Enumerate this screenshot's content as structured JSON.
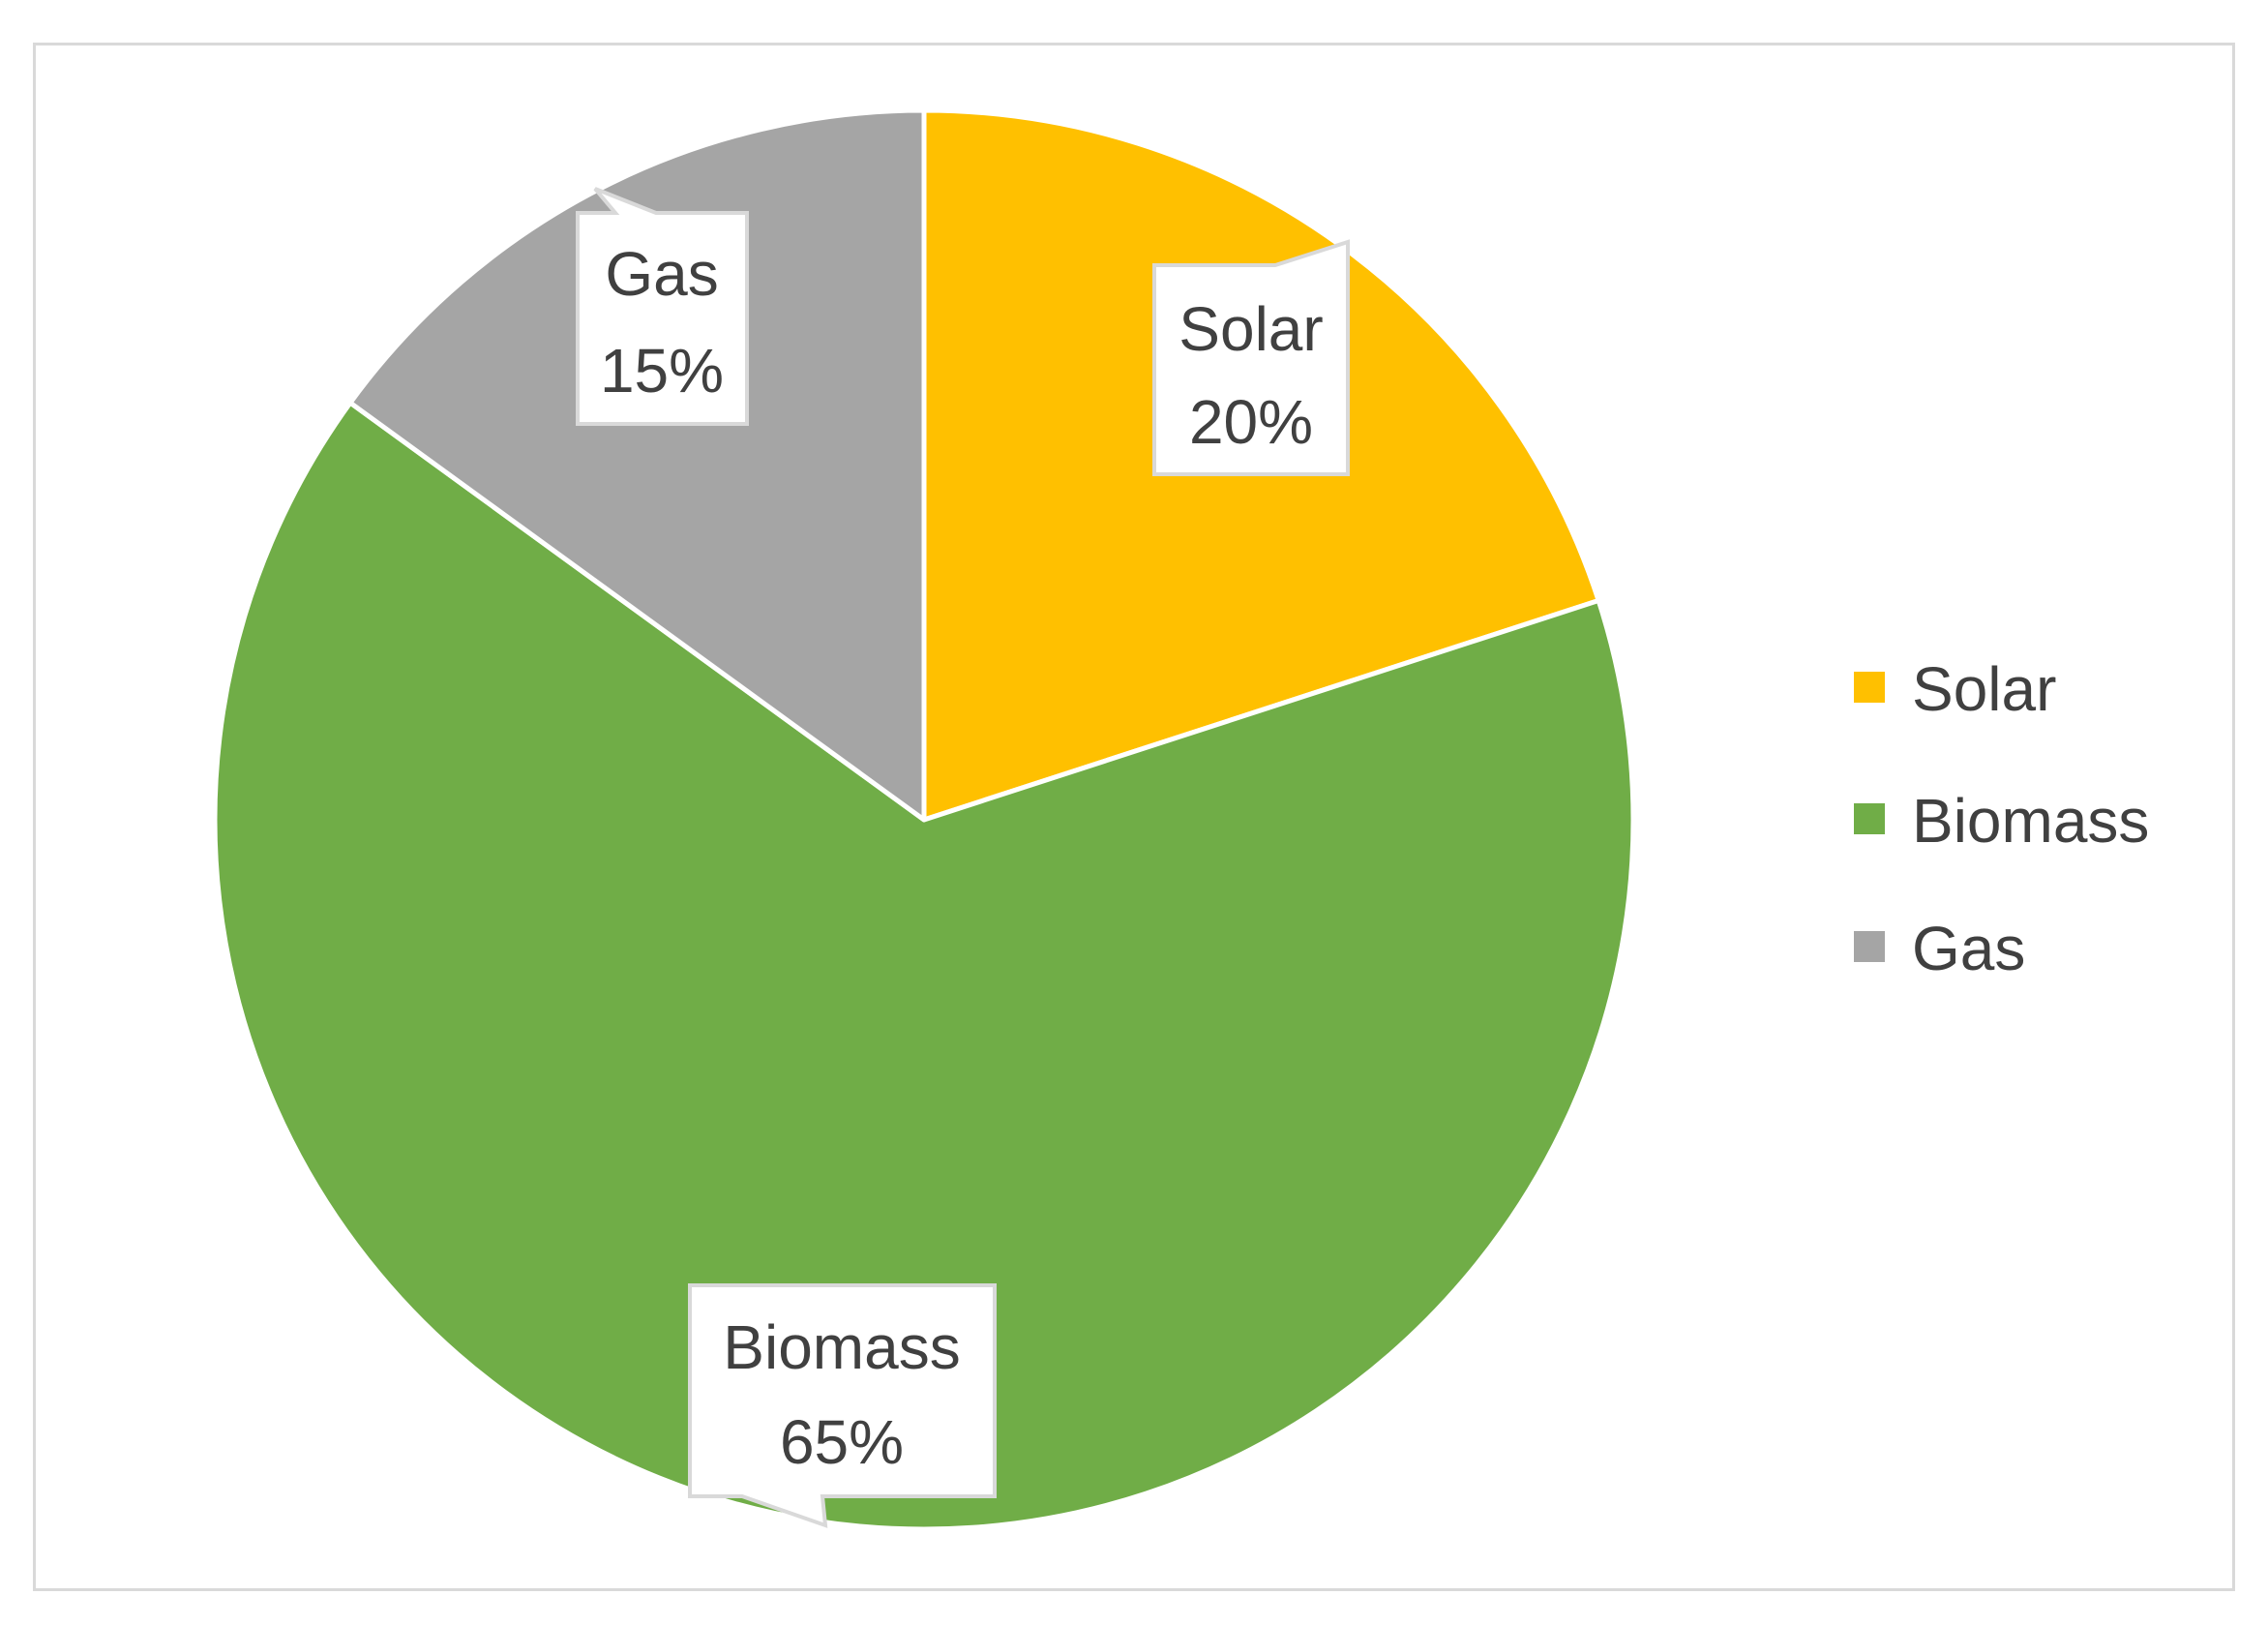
{
  "chart_data": {
    "type": "pie",
    "categories": [
      "Solar",
      "Biomass",
      "Gas"
    ],
    "values": [
      20,
      65,
      15
    ],
    "unit": "%",
    "colors": [
      "#FFC000",
      "#70AD47",
      "#A5A5A5"
    ],
    "start_angle_deg": 0,
    "direction": "clockwise",
    "legend_position": "right",
    "data_label_style": "callout",
    "labels": [
      {
        "name": "Solar",
        "value_text": "20%"
      },
      {
        "name": "Biomass",
        "value_text": "65%"
      },
      {
        "name": "Gas",
        "value_text": "15%"
      }
    ],
    "legend": [
      {
        "name": "Solar",
        "color": "#FFC000"
      },
      {
        "name": "Biomass",
        "color": "#70AD47"
      },
      {
        "name": "Gas",
        "color": "#A5A5A5"
      }
    ]
  }
}
